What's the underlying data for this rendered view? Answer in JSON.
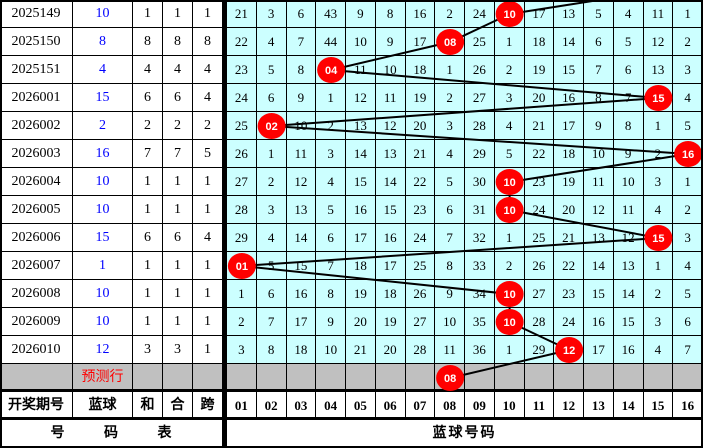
{
  "colors": {
    "grid_bg": "#ccffff",
    "white_bg": "#ffffff",
    "predict_bg": "#c0c0c0",
    "ball_fill": "#ff0000",
    "ball_text": "#ffffff",
    "blue_value_text": "#0000ff",
    "predict_label_text": "#ff0000",
    "line": "#000000"
  },
  "chart_data": {
    "type": "table",
    "left_headers": [
      "开奖期号",
      "蓝球",
      "和",
      "合",
      "跨"
    ],
    "blue_number_headers": [
      "01",
      "02",
      "03",
      "04",
      "05",
      "06",
      "07",
      "08",
      "09",
      "10",
      "11",
      "12",
      "13",
      "14",
      "15",
      "16"
    ],
    "footer_left": "号 码 表",
    "footer_right": "蓝球号码",
    "predict_row_label": "预测行",
    "predicted_ball": "08",
    "incoming_line_from_ball": "16",
    "rows": [
      {
        "period": "2025149",
        "blue": "10",
        "he": "1",
        "hezhi": "1",
        "kua": "1",
        "miss": [
          21,
          3,
          6,
          43,
          9,
          8,
          16,
          2,
          24,
          null,
          17,
          13,
          5,
          4,
          11,
          1
        ]
      },
      {
        "period": "2025150",
        "blue": "8",
        "he": "8",
        "hezhi": "8",
        "kua": "8",
        "miss": [
          22,
          4,
          7,
          44,
          10,
          9,
          17,
          null,
          25,
          1,
          18,
          14,
          6,
          5,
          12,
          2
        ]
      },
      {
        "period": "2025151",
        "blue": "4",
        "he": "4",
        "hezhi": "4",
        "kua": "4",
        "miss": [
          23,
          5,
          8,
          null,
          11,
          10,
          18,
          1,
          26,
          2,
          19,
          15,
          7,
          6,
          13,
          3
        ]
      },
      {
        "period": "2026001",
        "blue": "15",
        "he": "6",
        "hezhi": "6",
        "kua": "4",
        "miss": [
          24,
          6,
          9,
          1,
          12,
          11,
          19,
          2,
          27,
          3,
          20,
          16,
          8,
          7,
          null,
          4
        ]
      },
      {
        "period": "2026002",
        "blue": "2",
        "he": "2",
        "hezhi": "2",
        "kua": "2",
        "miss": [
          25,
          null,
          10,
          2,
          13,
          12,
          20,
          3,
          28,
          4,
          21,
          17,
          9,
          8,
          1,
          5
        ]
      },
      {
        "period": "2026003",
        "blue": "16",
        "he": "7",
        "hezhi": "7",
        "kua": "5",
        "miss": [
          26,
          1,
          11,
          3,
          14,
          13,
          21,
          4,
          29,
          5,
          22,
          18,
          10,
          9,
          2,
          null
        ]
      },
      {
        "period": "2026004",
        "blue": "10",
        "he": "1",
        "hezhi": "1",
        "kua": "1",
        "miss": [
          27,
          2,
          12,
          4,
          15,
          14,
          22,
          5,
          30,
          null,
          23,
          19,
          11,
          10,
          3,
          1
        ]
      },
      {
        "period": "2026005",
        "blue": "10",
        "he": "1",
        "hezhi": "1",
        "kua": "1",
        "miss": [
          28,
          3,
          13,
          5,
          16,
          15,
          23,
          6,
          31,
          null,
          24,
          20,
          12,
          11,
          4,
          2
        ]
      },
      {
        "period": "2026006",
        "blue": "15",
        "he": "6",
        "hezhi": "6",
        "kua": "4",
        "miss": [
          29,
          4,
          14,
          6,
          17,
          16,
          24,
          7,
          32,
          1,
          25,
          21,
          13,
          12,
          null,
          3
        ]
      },
      {
        "period": "2026007",
        "blue": "1",
        "he": "1",
        "hezhi": "1",
        "kua": "1",
        "miss": [
          null,
          5,
          15,
          7,
          18,
          17,
          25,
          8,
          33,
          2,
          26,
          22,
          14,
          13,
          1,
          4
        ]
      },
      {
        "period": "2026008",
        "blue": "10",
        "he": "1",
        "hezhi": "1",
        "kua": "1",
        "miss": [
          1,
          6,
          16,
          8,
          19,
          18,
          26,
          9,
          34,
          null,
          27,
          23,
          15,
          14,
          2,
          5
        ]
      },
      {
        "period": "2026009",
        "blue": "10",
        "he": "1",
        "hezhi": "1",
        "kua": "1",
        "miss": [
          2,
          7,
          17,
          9,
          20,
          19,
          27,
          10,
          35,
          null,
          28,
          24,
          16,
          15,
          3,
          6
        ]
      },
      {
        "period": "2026010",
        "blue": "12",
        "he": "3",
        "hezhi": "3",
        "kua": "1",
        "miss": [
          3,
          8,
          18,
          10,
          21,
          20,
          28,
          11,
          36,
          1,
          29,
          null,
          17,
          16,
          4,
          7
        ]
      }
    ]
  }
}
